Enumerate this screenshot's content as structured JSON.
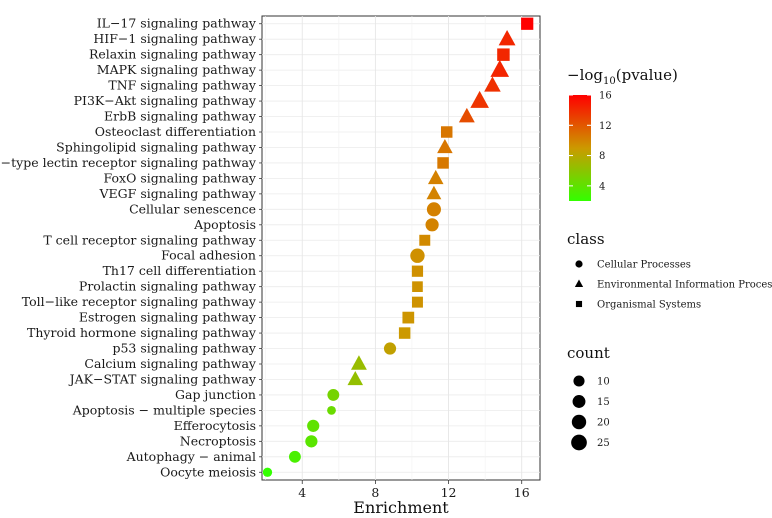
{
  "chart_data": {
    "type": "scatter",
    "title": "",
    "xlabel": "Enrichment",
    "ylabel": "",
    "xlim": [
      1.8,
      17.0
    ],
    "xticks": [
      4,
      8,
      12,
      16
    ],
    "grid": true,
    "legend_position": "right",
    "color_legend": {
      "title_prefix": "−log",
      "title_sub": "10",
      "title_suffix": "(pvalue)",
      "min": 2,
      "max": 16,
      "ticks": [
        4,
        8,
        12,
        16
      ],
      "low_color": "#33ff00",
      "mid_color": "#cc9900",
      "high_color": "#ff0000"
    },
    "shape_legend": {
      "title": "class",
      "entries": [
        {
          "label": "Cellular Processes",
          "shape": "circle"
        },
        {
          "label": "Environmental Information Processing",
          "shape": "triangle"
        },
        {
          "label": "Organismal Systems",
          "shape": "square"
        }
      ]
    },
    "size_legend": {
      "title": "count",
      "entries": [
        10,
        15,
        20,
        25
      ]
    },
    "points": [
      {
        "pathway": "IL−17 signaling pathway",
        "enrichment": 16.3,
        "neglog10p": 16.0,
        "count": 20,
        "class": "Organismal Systems"
      },
      {
        "pathway": "HIF−1 signaling pathway",
        "enrichment": 15.2,
        "neglog10p": 14.2,
        "count": 21,
        "class": "Environmental Information Processing"
      },
      {
        "pathway": "Relaxin signaling pathway",
        "enrichment": 15.0,
        "neglog10p": 14.2,
        "count": 21,
        "class": "Organismal Systems"
      },
      {
        "pathway": "MAPK signaling pathway",
        "enrichment": 14.8,
        "neglog10p": 14.3,
        "count": 27,
        "class": "Environmental Information Processing"
      },
      {
        "pathway": "TNF signaling pathway",
        "enrichment": 14.4,
        "neglog10p": 13.8,
        "count": 20,
        "class": "Environmental Information Processing"
      },
      {
        "pathway": "PI3K−Akt signaling pathway",
        "enrichment": 13.7,
        "neglog10p": 13.6,
        "count": 27,
        "class": "Environmental Information Processing"
      },
      {
        "pathway": "ErbB signaling pathway",
        "enrichment": 13.0,
        "neglog10p": 12.5,
        "count": 18,
        "class": "Environmental Information Processing"
      },
      {
        "pathway": "Osteoclast differentiation",
        "enrichment": 11.9,
        "neglog10p": 10.6,
        "count": 17,
        "class": "Organismal Systems"
      },
      {
        "pathway": "Sphingolipid signaling pathway",
        "enrichment": 11.8,
        "neglog10p": 10.6,
        "count": 17,
        "class": "Environmental Information Processing"
      },
      {
        "pathway": "C−type lectin receptor signaling pathway",
        "enrichment": 11.7,
        "neglog10p": 10.5,
        "count": 17,
        "class": "Organismal Systems"
      },
      {
        "pathway": "FoxO signaling pathway",
        "enrichment": 11.3,
        "neglog10p": 10.1,
        "count": 17,
        "class": "Environmental Information Processing"
      },
      {
        "pathway": "VEGF signaling pathway",
        "enrichment": 11.2,
        "neglog10p": 10.0,
        "count": 15,
        "class": "Environmental Information Processing"
      },
      {
        "pathway": "Cellular senescence",
        "enrichment": 11.2,
        "neglog10p": 10.1,
        "count": 19,
        "class": "Cellular Processes"
      },
      {
        "pathway": "Apoptosis",
        "enrichment": 11.1,
        "neglog10p": 10.0,
        "count": 16,
        "class": "Cellular Processes"
      },
      {
        "pathway": "T cell receptor signaling pathway",
        "enrichment": 10.7,
        "neglog10p": 9.7,
        "count": 15,
        "class": "Organismal Systems"
      },
      {
        "pathway": "Focal adhesion",
        "enrichment": 10.3,
        "neglog10p": 9.4,
        "count": 20,
        "class": "Cellular Processes"
      },
      {
        "pathway": "Th17 cell differentiation",
        "enrichment": 10.3,
        "neglog10p": 9.4,
        "count": 16,
        "class": "Organismal Systems"
      },
      {
        "pathway": "Prolactin signaling pathway",
        "enrichment": 10.3,
        "neglog10p": 9.3,
        "count": 14,
        "class": "Organismal Systems"
      },
      {
        "pathway": "Toll−like receptor signaling pathway",
        "enrichment": 10.3,
        "neglog10p": 9.3,
        "count": 15,
        "class": "Organismal Systems"
      },
      {
        "pathway": "Estrogen signaling pathway",
        "enrichment": 9.8,
        "neglog10p": 9.2,
        "count": 18,
        "class": "Organismal Systems"
      },
      {
        "pathway": "Thyroid hormone signaling pathway",
        "enrichment": 9.6,
        "neglog10p": 9.0,
        "count": 17,
        "class": "Organismal Systems"
      },
      {
        "pathway": "p53 signaling pathway",
        "enrichment": 8.8,
        "neglog10p": 8.5,
        "count": 13,
        "class": "Cellular Processes"
      },
      {
        "pathway": "Calcium signaling pathway",
        "enrichment": 7.1,
        "neglog10p": 6.6,
        "count": 18,
        "class": "Environmental Information Processing"
      },
      {
        "pathway": "JAK−STAT signaling pathway",
        "enrichment": 6.9,
        "neglog10p": 6.4,
        "count": 17,
        "class": "Environmental Information Processing"
      },
      {
        "pathway": "Gap junction",
        "enrichment": 5.7,
        "neglog10p": 5.0,
        "count": 12,
        "class": "Cellular Processes"
      },
      {
        "pathway": "Apoptosis − multiple species",
        "enrichment": 5.6,
        "neglog10p": 4.5,
        "count": 5,
        "class": "Cellular Processes"
      },
      {
        "pathway": "Efferocytosis",
        "enrichment": 4.6,
        "neglog10p": 4.0,
        "count": 13,
        "class": "Cellular Processes"
      },
      {
        "pathway": "Necroptosis",
        "enrichment": 4.5,
        "neglog10p": 3.8,
        "count": 13,
        "class": "Cellular Processes"
      },
      {
        "pathway": "Autophagy − animal",
        "enrichment": 3.6,
        "neglog10p": 3.0,
        "count": 12,
        "class": "Cellular Processes"
      },
      {
        "pathway": "Oocyte meiosis",
        "enrichment": 2.1,
        "neglog10p": 2.0,
        "count": 6,
        "class": "Cellular Processes"
      }
    ]
  }
}
